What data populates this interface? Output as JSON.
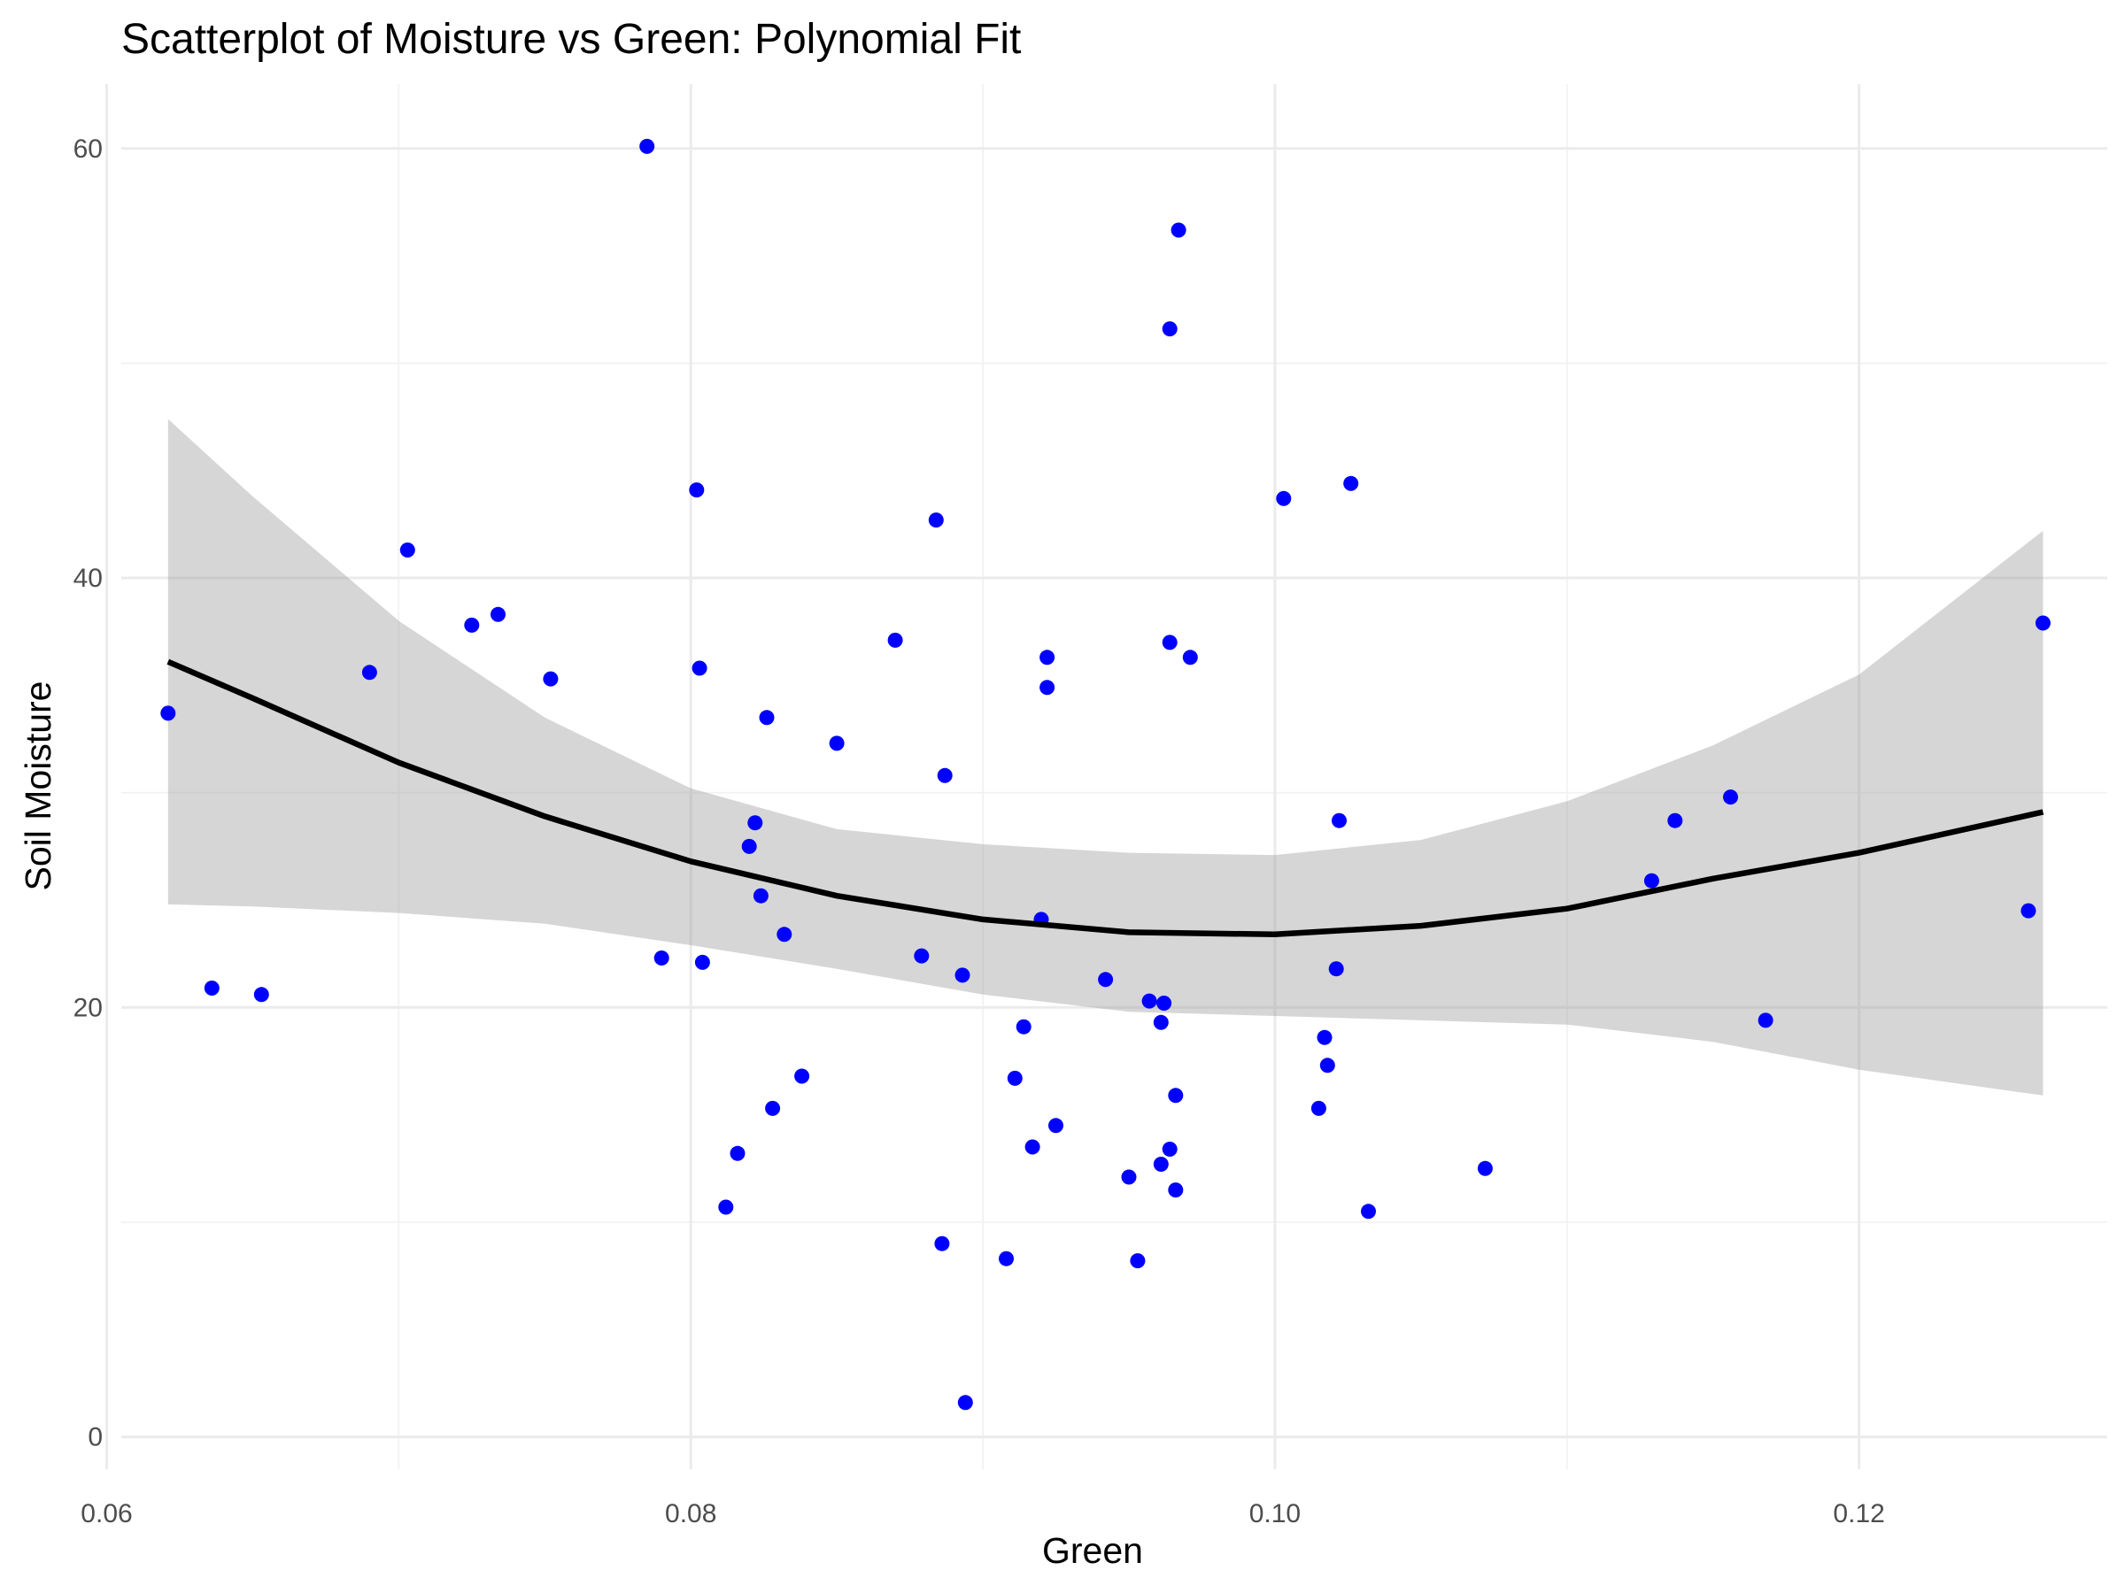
{
  "chart_data": {
    "type": "scatter",
    "title": "Scatterplot of Moisture vs Green: Polynomial Fit",
    "xlabel": "Green",
    "ylabel": "Soil Moisture",
    "xlim": [
      0.0605,
      0.1285
    ],
    "ylim": [
      -1.5,
      63
    ],
    "x_ticks": [
      0.06,
      0.08,
      0.1,
      0.12
    ],
    "x_tick_labels": [
      "0.06",
      "0.08",
      "0.10",
      "0.12"
    ],
    "x_minor_ticks": [
      0.07,
      0.09,
      0.11
    ],
    "y_ticks": [
      0,
      20,
      40,
      60
    ],
    "y_tick_labels": [
      "0",
      "20",
      "40",
      "60"
    ],
    "y_minor_ticks": [
      10,
      30,
      50
    ],
    "grid": true,
    "legend": "none",
    "colors": {
      "points": "#0000ff",
      "fit_line": "#000000",
      "confidence_band": "#999999"
    },
    "points": {
      "x": [
        0.0621,
        0.0636,
        0.0653,
        0.069,
        0.0703,
        0.0725,
        0.0734,
        0.0752,
        0.0785,
        0.079,
        0.0802,
        0.0803,
        0.0804,
        0.0812,
        0.0816,
        0.082,
        0.0822,
        0.0824,
        0.0826,
        0.0828,
        0.0832,
        0.0838,
        0.085,
        0.087,
        0.0879,
        0.0884,
        0.0886,
        0.0887,
        0.0893,
        0.0894,
        0.0908,
        0.0911,
        0.0914,
        0.0917,
        0.092,
        0.0922,
        0.0922,
        0.0925,
        0.0942,
        0.095,
        0.0953,
        0.0957,
        0.0961,
        0.0961,
        0.0962,
        0.0964,
        0.0964,
        0.0964,
        0.0966,
        0.0966,
        0.0967,
        0.0971,
        0.1003,
        0.1015,
        0.1017,
        0.1018,
        0.1021,
        0.1022,
        0.1026,
        0.1032,
        0.1072,
        0.1129,
        0.1137,
        0.1156,
        0.1168,
        0.1258,
        0.1263
      ],
      "y": [
        33.7,
        20.9,
        20.6,
        35.6,
        41.3,
        37.8,
        38.3,
        35.3,
        60.1,
        22.3,
        44.1,
        35.8,
        22.1,
        10.7,
        13.2,
        27.5,
        28.6,
        25.2,
        33.5,
        15.3,
        23.4,
        16.8,
        32.3,
        37.1,
        22.4,
        42.7,
        9.0,
        30.8,
        21.5,
        1.6,
        8.3,
        16.7,
        19.1,
        13.5,
        24.1,
        36.3,
        34.9,
        14.5,
        21.3,
        12.1,
        8.2,
        20.3,
        19.3,
        12.7,
        20.2,
        51.6,
        37.0,
        13.4,
        11.5,
        15.9,
        56.2,
        36.3,
        43.7,
        15.3,
        18.6,
        17.3,
        21.8,
        28.7,
        44.4,
        10.5,
        12.5,
        25.9,
        28.7,
        29.8,
        19.4,
        24.5,
        37.9
      ]
    },
    "fit": {
      "method": "polynomial (degree 2)",
      "x": [
        0.0621,
        0.065,
        0.07,
        0.075,
        0.08,
        0.085,
        0.09,
        0.095,
        0.1,
        0.105,
        0.11,
        0.115,
        0.12,
        0.1263
      ],
      "y": [
        36.1,
        34.4,
        31.4,
        28.9,
        26.8,
        25.2,
        24.1,
        23.5,
        23.4,
        23.8,
        24.6,
        26.0,
        27.2,
        29.1
      ],
      "ci_upper": [
        47.4,
        43.8,
        38.0,
        33.5,
        30.2,
        28.3,
        27.6,
        27.2,
        27.1,
        27.8,
        29.6,
        32.2,
        35.5,
        42.2
      ],
      "ci_lower": [
        24.8,
        24.7,
        24.4,
        23.9,
        22.9,
        21.8,
        20.6,
        19.8,
        19.6,
        19.4,
        19.2,
        18.4,
        17.1,
        15.9
      ]
    }
  }
}
